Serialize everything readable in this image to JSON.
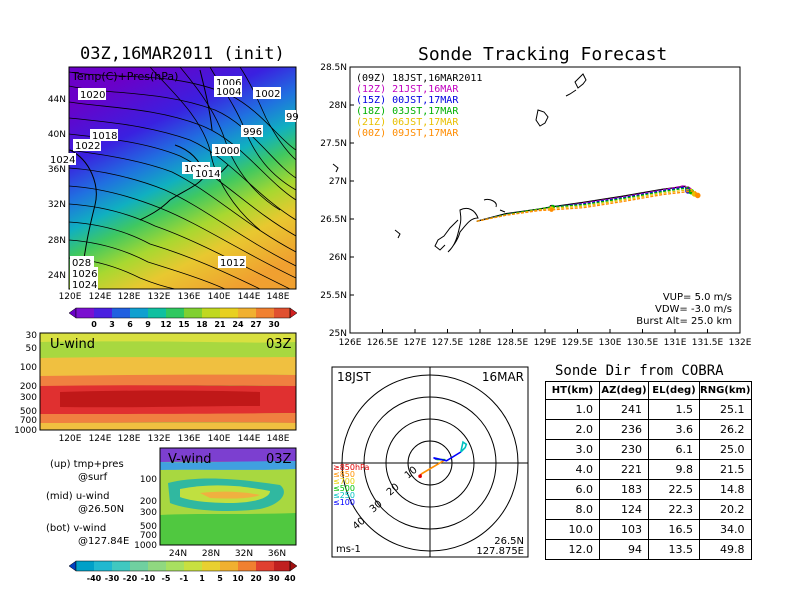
{
  "left_map": {
    "title": "03Z,16MAR2011 (init)",
    "field_label": "Temp(C)+Pres(hPa)",
    "lat_ticks": [
      "44N",
      "40N",
      "36N",
      "32N",
      "28N",
      "24N"
    ],
    "lon_ticks": [
      "120E",
      "124E",
      "128E",
      "132E",
      "136E",
      "140E",
      "144E",
      "148E"
    ],
    "pressure_labels": [
      "1020",
      "1006",
      "1004",
      "1002",
      "1018",
      "996",
      "1022",
      "1000",
      "1024",
      "1010",
      "1014",
      "1012",
      "028",
      "1026",
      "1024",
      "99"
    ],
    "colorbar_labels": [
      "0",
      "3",
      "6",
      "9",
      "12",
      "15",
      "18",
      "21",
      "24",
      "27",
      "30"
    ]
  },
  "uwind_panel": {
    "label": "U-wind",
    "time": "03Z",
    "pressure_ticks": [
      "30",
      "50",
      "100",
      "200",
      "300",
      "500",
      "700",
      "1000"
    ],
    "lon_ticks": [
      "120E",
      "124E",
      "128E",
      "132E",
      "136E",
      "140E",
      "144E",
      "148E"
    ]
  },
  "vwind_panel": {
    "label": "V-wind",
    "time": "03Z",
    "pressure_ticks": [
      "100",
      "200",
      "300",
      "500",
      "700",
      "1000"
    ],
    "lat_ticks": [
      "24N",
      "28N",
      "32N",
      "36N"
    ],
    "colorbar_labels": [
      "-40",
      "-30",
      "-20",
      "-10",
      "-5",
      "-1",
      "1",
      "5",
      "10",
      "20",
      "30",
      "40"
    ]
  },
  "legend_notes": [
    {
      "top": "(up) tmp+pres",
      "bottom": "@surf"
    },
    {
      "top": "(mid) u-wind",
      "bottom": "@26.50N"
    },
    {
      "top": "(bot) v-wind",
      "bottom": "@127.84E"
    }
  ],
  "forecast": {
    "title": "Sonde Tracking Forecast",
    "vup": "VUP= 5.0 m/s",
    "vdw": "VDW= -3.0 m/s",
    "burst": "Burst Alt= 25.0 km"
  },
  "polar": {
    "time": "18JST",
    "date": "16MAR",
    "loc_lat": "26.5N",
    "loc_lon": "127.875E",
    "unit": "ms-1",
    "ring_labels": [
      "10",
      "20",
      "30",
      "40"
    ],
    "pressure_legend": [
      {
        "text": "≥850hPa",
        "color": "#e00000"
      },
      {
        "text": "≤850",
        "color": "#ff9000"
      },
      {
        "text": "≤700",
        "color": "#e8d000"
      },
      {
        "text": "≤500",
        "color": "#00c000"
      },
      {
        "text": "≤250",
        "color": "#00c0c0"
      },
      {
        "text": "≤100",
        "color": "#0000ff"
      }
    ]
  },
  "sonde_table": {
    "title": "Sonde Dir from COBRA",
    "headers": [
      "HT(km)",
      "AZ(deg)",
      "EL(deg)",
      "RNG(km)"
    ],
    "rows": [
      [
        "1.0",
        "241",
        "1.5",
        "25.1"
      ],
      [
        "2.0",
        "236",
        "3.6",
        "26.2"
      ],
      [
        "3.0",
        "230",
        "6.1",
        "25.0"
      ],
      [
        "4.0",
        "221",
        "9.8",
        "21.5"
      ],
      [
        "6.0",
        "183",
        "22.5",
        "14.8"
      ],
      [
        "8.0",
        "124",
        "22.3",
        "20.2"
      ],
      [
        "10.0",
        "103",
        "16.5",
        "34.0"
      ],
      [
        "12.0",
        "94",
        "13.5",
        "49.8"
      ]
    ]
  },
  "chart_data": {
    "type": "line",
    "title": "Sonde Tracking Forecast",
    "xlim": [
      126.0,
      132.0
    ],
    "ylim": [
      25.0,
      28.5
    ],
    "x_ticks": [
      "126E",
      "126.5E",
      "127E",
      "127.5E",
      "128E",
      "128.5E",
      "129E",
      "129.5E",
      "130E",
      "130.5E",
      "131E",
      "131.5E",
      "132E"
    ],
    "y_ticks": [
      "25N",
      "25.5N",
      "26N",
      "26.5N",
      "27N",
      "27.5N",
      "28N",
      "28.5N"
    ],
    "legend": "top-left",
    "series": [
      {
        "name": "(09Z) 18JST,16MAR2011",
        "color": "#000000",
        "lon": [
          127.95,
          128.4,
          128.9,
          129.1,
          129.6,
          130.2,
          130.8,
          131.15,
          131.2
        ],
        "lat": [
          26.47,
          26.57,
          26.63,
          26.66,
          26.72,
          26.8,
          26.89,
          26.93,
          26.89
        ]
      },
      {
        "name": "(12Z) 21JST,16MAR",
        "color": "#c000c0",
        "lon": [
          127.95,
          128.4,
          128.9,
          129.1,
          129.6,
          130.2,
          130.8,
          131.15,
          131.22
        ],
        "lat": [
          26.47,
          26.56,
          26.62,
          26.65,
          26.71,
          26.79,
          26.88,
          26.94,
          26.88
        ]
      },
      {
        "name": "(15Z) 00JST,17MAR",
        "color": "#0000e0",
        "lon": [
          127.95,
          128.4,
          128.9,
          129.12,
          129.6,
          130.2,
          130.8,
          131.15,
          131.2
        ],
        "lat": [
          26.47,
          26.56,
          26.62,
          26.66,
          26.7,
          26.78,
          26.87,
          26.92,
          26.87
        ]
      },
      {
        "name": "(18Z) 03JST,17MAR",
        "color": "#00b000",
        "lon": [
          127.95,
          128.4,
          128.9,
          129.12,
          129.6,
          130.2,
          130.8,
          131.2,
          131.25
        ],
        "lat": [
          26.47,
          26.56,
          26.63,
          26.66,
          26.69,
          26.77,
          26.86,
          26.91,
          26.86
        ]
      },
      {
        "name": "(21Z) 06JST,17MAR",
        "color": "#e8c000",
        "lon": [
          127.95,
          128.4,
          128.9,
          129.1,
          129.6,
          130.2,
          130.8,
          131.25,
          131.3
        ],
        "lat": [
          26.47,
          26.55,
          26.62,
          26.64,
          26.67,
          26.75,
          26.84,
          26.89,
          26.83
        ]
      },
      {
        "name": "(00Z) 09JST,17MAR",
        "color": "#ff8c00",
        "lon": [
          127.95,
          128.4,
          128.9,
          129.1,
          129.6,
          130.2,
          130.8,
          131.3,
          131.35
        ],
        "lat": [
          26.47,
          26.55,
          26.61,
          26.62,
          26.65,
          26.73,
          26.82,
          26.87,
          26.81
        ]
      }
    ]
  },
  "polar_hodograph": {
    "type": "line",
    "max_speed": 40,
    "segments": [
      {
        "color": "#e00000",
        "u": [
          -4.5,
          -4.0
        ],
        "v": [
          -6.0,
          -5.0
        ]
      },
      {
        "color": "#ff9000",
        "u": [
          -4.0,
          7.0
        ],
        "v": [
          -5.0,
          1.5
        ]
      },
      {
        "color": "#00c000",
        "u": [
          7.0,
          3.0
        ],
        "v": [
          1.5,
          1.6
        ]
      },
      {
        "color": "#0000ff",
        "u": [
          3.0,
          1.6,
          7.5,
          14.0
        ],
        "v": [
          1.6,
          2.4,
          1.0,
          5.0
        ]
      },
      {
        "color": "#00c0c0",
        "u": [
          14.0,
          16.0,
          16.5,
          15.0,
          14.0
        ],
        "v": [
          5.0,
          7.0,
          8.5,
          9.5,
          5.0
        ]
      }
    ]
  }
}
